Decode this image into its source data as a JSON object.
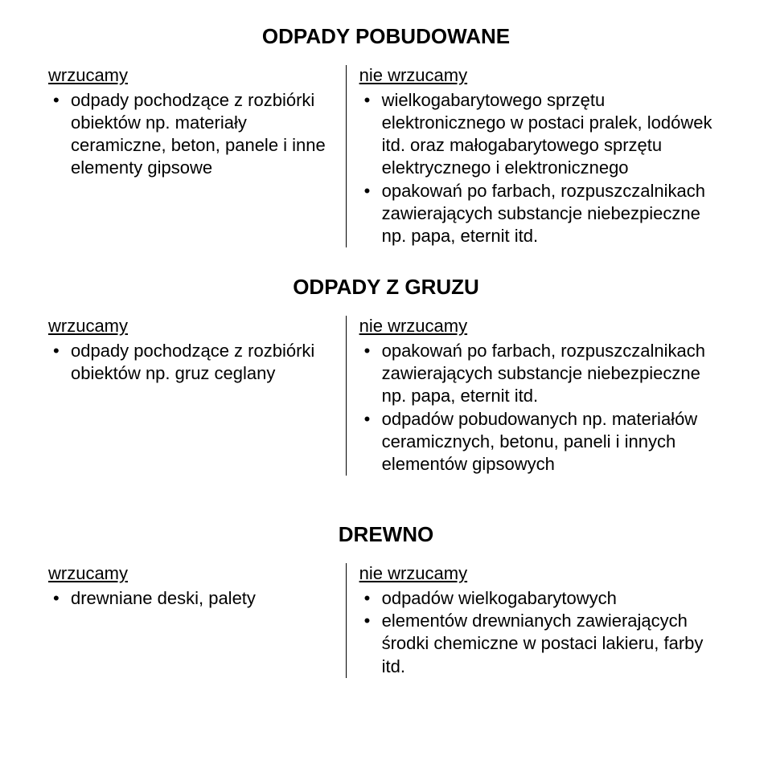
{
  "sections": [
    {
      "title": "ODPADY POBUDOWANE",
      "left": {
        "header": "wrzucamy",
        "items": [
          "odpady  pochodzące z rozbiórki obiektów np. materiały ceramiczne, beton, panele i inne elementy gipsowe"
        ]
      },
      "right": {
        "header": "nie wrzucamy",
        "items": [
          "wielkogabarytowego sprzętu elektronicznego w postaci pralek, lodówek itd. oraz małogabarytowego sprzętu elektrycznego i elektronicznego",
          "opakowań po farbach, rozpuszczalnikach zawierających substancje niebezpieczne np. papa, eternit itd."
        ]
      }
    },
    {
      "title": "ODPADY Z GRUZU",
      "left": {
        "header": "wrzucamy",
        "items": [
          "odpady pochodzące z rozbiórki obiektów  np. gruz ceglany"
        ]
      },
      "right": {
        "header": "nie wrzucamy",
        "items": [
          "opakowań po farbach, rozpuszczalnikach zawierających substancje niebezpieczne np. papa, eternit itd.",
          "odpadów pobudowanych  np. materiałów ceramicznych, betonu, paneli i innych elementów gipsowych"
        ]
      }
    },
    {
      "title": "DREWNO",
      "left": {
        "header": "wrzucamy",
        "items": [
          "drewniane deski, palety"
        ]
      },
      "right": {
        "header": "nie wrzucamy",
        "items": [
          "odpadów wielkogabarytowych",
          "elementów drewnianych zawierających środki chemiczne w postaci lakieru, farby itd."
        ]
      }
    }
  ]
}
